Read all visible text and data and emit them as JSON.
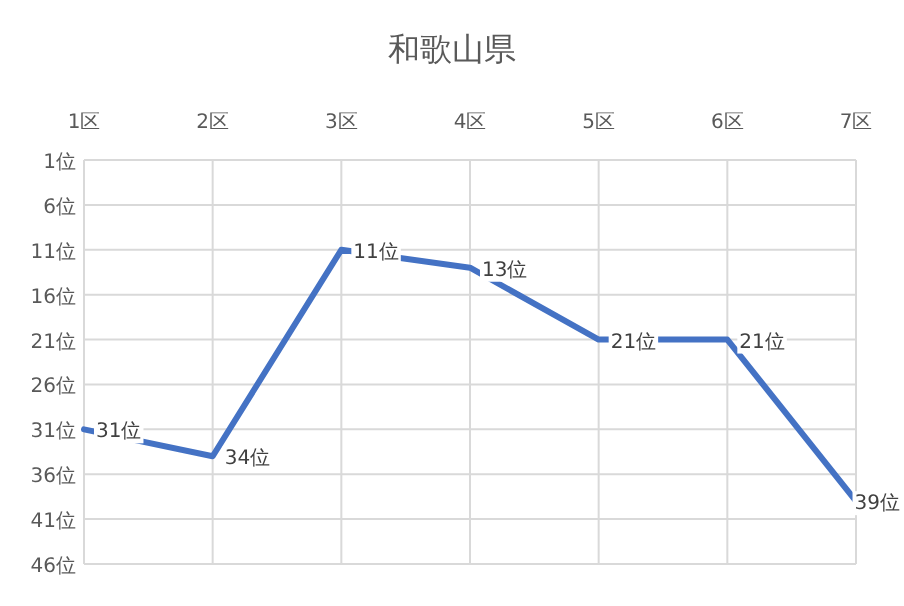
{
  "chart_data": {
    "type": "line",
    "title": "和歌山県",
    "categories": [
      "1区",
      "2区",
      "3区",
      "4区",
      "5区",
      "6区",
      "7区"
    ],
    "series": [
      {
        "color": "#4472c4",
        "values": [
          31,
          34,
          11,
          13,
          21,
          21,
          39
        ],
        "value_labels": [
          "31位",
          "34位",
          "11位",
          "13位",
          "21位",
          "21位",
          "39位"
        ]
      }
    ],
    "ylim": [
      46,
      1
    ],
    "yticks": [
      {
        "value": 1,
        "label": "1位"
      },
      {
        "value": 6,
        "label": "6位"
      },
      {
        "value": 11,
        "label": "11位"
      },
      {
        "value": 16,
        "label": "16位"
      },
      {
        "value": 21,
        "label": "21位"
      },
      {
        "value": 26,
        "label": "26位"
      },
      {
        "value": 31,
        "label": "31位"
      },
      {
        "value": 36,
        "label": "36位"
      },
      {
        "value": 41,
        "label": "41位"
      },
      {
        "value": 46,
        "label": "46位"
      }
    ],
    "grid": true,
    "marker": "none",
    "line_style": "solid"
  }
}
